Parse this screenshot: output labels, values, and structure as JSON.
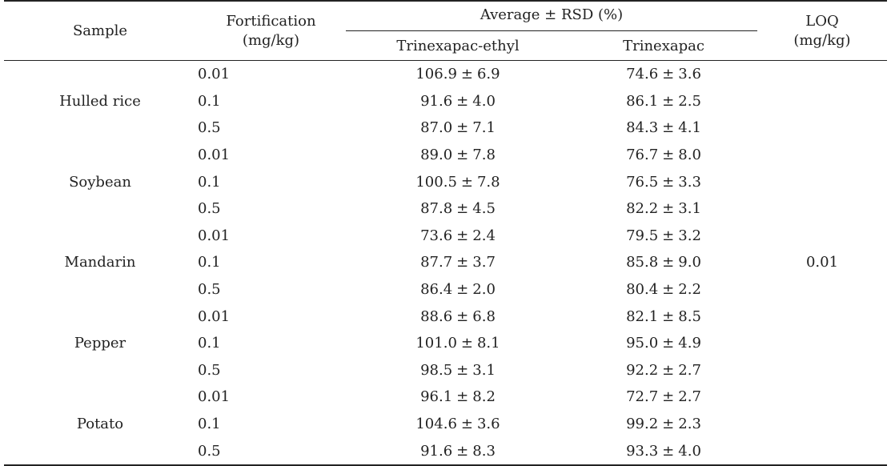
{
  "headers": {
    "sample": "Sample",
    "fortification_line1": "Fortification",
    "fortification_line2": "(mg/kg)",
    "average_rsd": "Average ± RSD (%)",
    "compound1": "Trinexapac-ethyl",
    "compound2": "Trinexapac",
    "loq_line1": "LOQ",
    "loq_line2": "(mg/kg)"
  },
  "loq_value": "0.01",
  "pm_symbol": "±",
  "samples": [
    {
      "name": "Hulled rice",
      "rows": [
        {
          "fort": "0.01",
          "v1_avg": "106.9",
          "v1_rsd": "6.9",
          "v2_avg": "74.6",
          "v2_rsd": "3.6"
        },
        {
          "fort": "0.1",
          "v1_avg": "91.6",
          "v1_rsd": "4.0",
          "v2_avg": "86.1",
          "v2_rsd": "2.5"
        },
        {
          "fort": "0.5",
          "v1_avg": "87.0",
          "v1_rsd": "7.1",
          "v2_avg": "84.3",
          "v2_rsd": "4.1"
        }
      ]
    },
    {
      "name": "Soybean",
      "rows": [
        {
          "fort": "0.01",
          "v1_avg": "89.0",
          "v1_rsd": "7.8",
          "v2_avg": "76.7",
          "v2_rsd": "8.0"
        },
        {
          "fort": "0.1",
          "v1_avg": "100.5",
          "v1_rsd": "7.8",
          "v2_avg": "76.5",
          "v2_rsd": "3.3"
        },
        {
          "fort": "0.5",
          "v1_avg": "87.8",
          "v1_rsd": "4.5",
          "v2_avg": "82.2",
          "v2_rsd": "3.1"
        }
      ]
    },
    {
      "name": "Mandarin",
      "rows": [
        {
          "fort": "0.01",
          "v1_avg": "73.6",
          "v1_rsd": "2.4",
          "v2_avg": "79.5",
          "v2_rsd": "3.2"
        },
        {
          "fort": "0.1",
          "v1_avg": "87.7",
          "v1_rsd": "3.7",
          "v2_avg": "85.8",
          "v2_rsd": "9.0"
        },
        {
          "fort": "0.5",
          "v1_avg": "86.4",
          "v1_rsd": "2.0",
          "v2_avg": "80.4",
          "v2_rsd": "2.2"
        }
      ]
    },
    {
      "name": "Pepper",
      "rows": [
        {
          "fort": "0.01",
          "v1_avg": "88.6",
          "v1_rsd": "6.8",
          "v2_avg": "82.1",
          "v2_rsd": "8.5"
        },
        {
          "fort": "0.1",
          "v1_avg": "101.0",
          "v1_rsd": "8.1",
          "v2_avg": "95.0",
          "v2_rsd": "4.9"
        },
        {
          "fort": "0.5",
          "v1_avg": "98.5",
          "v1_rsd": "3.1",
          "v2_avg": "92.2",
          "v2_rsd": "2.7"
        }
      ]
    },
    {
      "name": "Potato",
      "rows": [
        {
          "fort": "0.01",
          "v1_avg": "96.1",
          "v1_rsd": "8.2",
          "v2_avg": "72.7",
          "v2_rsd": "2.7"
        },
        {
          "fort": "0.1",
          "v1_avg": "104.6",
          "v1_rsd": "3.6",
          "v2_avg": "99.2",
          "v2_rsd": "2.3"
        },
        {
          "fort": "0.5",
          "v1_avg": "91.6",
          "v1_rsd": "8.3",
          "v2_avg": "93.3",
          "v2_rsd": "4.0"
        }
      ]
    }
  ]
}
